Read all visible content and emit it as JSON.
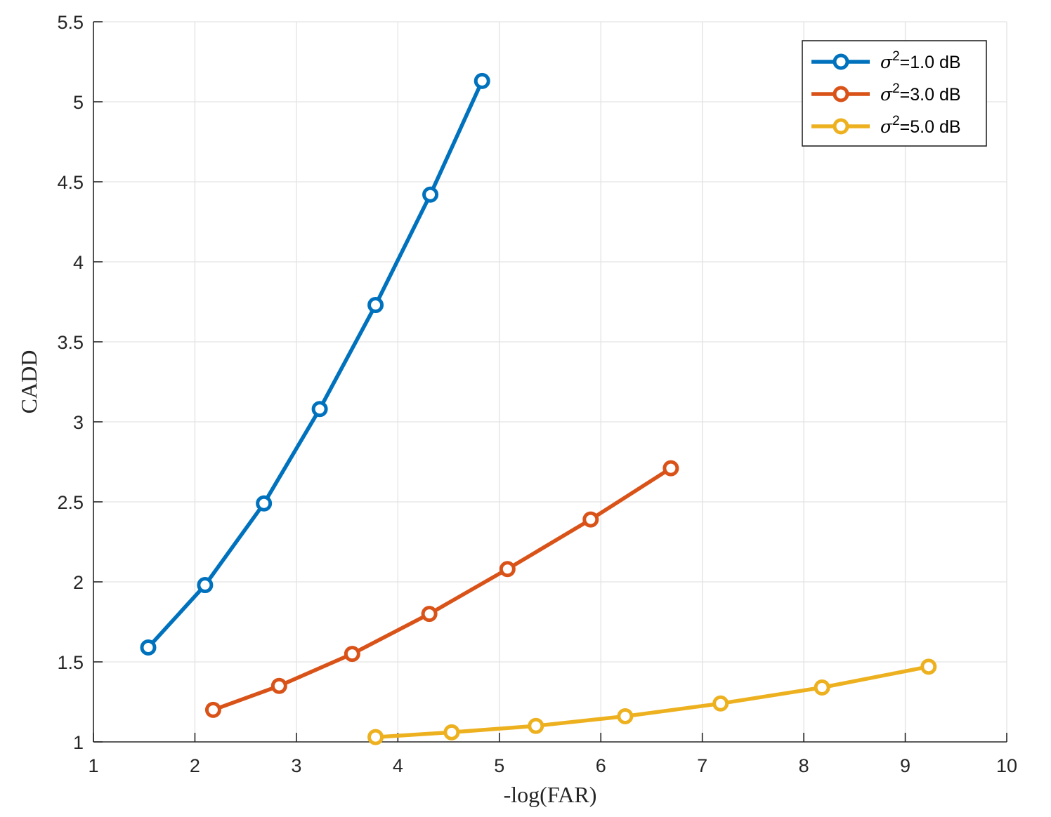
{
  "chart_data": {
    "type": "line",
    "title": "",
    "xlabel": "-log(FAR)",
    "ylabel": "CADD",
    "xlim": [
      1,
      10
    ],
    "ylim": [
      1,
      5.5
    ],
    "xticks": [
      1,
      2,
      3,
      4,
      5,
      6,
      7,
      8,
      9,
      10
    ],
    "yticks": [
      1,
      1.5,
      2,
      2.5,
      3,
      3.5,
      4,
      4.5,
      5,
      5.5
    ],
    "xtick_labels": [
      "1",
      "2",
      "3",
      "4",
      "5",
      "6",
      "7",
      "8",
      "9",
      "10"
    ],
    "ytick_labels": [
      "1",
      "1.5",
      "2",
      "2.5",
      "3",
      "3.5",
      "4",
      "4.5",
      "5",
      "5.5"
    ],
    "grid": true,
    "legend_position": "top-right",
    "marker": "circle",
    "series": [
      {
        "name": "σ²=1.0 dB",
        "legend_symbol": "σ",
        "legend_sup": "2",
        "legend_rest": "=1.0 dB",
        "color": "#0072BD",
        "x": [
          1.54,
          2.1,
          2.68,
          3.23,
          3.78,
          4.32,
          4.83
        ],
        "y": [
          1.59,
          1.98,
          2.49,
          3.08,
          3.73,
          4.42,
          5.13
        ]
      },
      {
        "name": "σ²=3.0 dB",
        "legend_symbol": "σ",
        "legend_sup": "2",
        "legend_rest": "=3.0 dB",
        "color": "#D95319",
        "x": [
          2.18,
          2.83,
          3.55,
          4.31,
          5.08,
          5.9,
          6.69
        ],
        "y": [
          1.2,
          1.35,
          1.55,
          1.8,
          2.08,
          2.39,
          2.71
        ]
      },
      {
        "name": "σ²=5.0 dB",
        "legend_symbol": "σ",
        "legend_sup": "2",
        "legend_rest": "=5.0 dB",
        "color": "#EDB120",
        "x": [
          3.78,
          4.53,
          5.36,
          6.24,
          7.18,
          8.18,
          9.23
        ],
        "y": [
          1.03,
          1.06,
          1.1,
          1.16,
          1.24,
          1.34,
          1.47
        ]
      }
    ]
  }
}
